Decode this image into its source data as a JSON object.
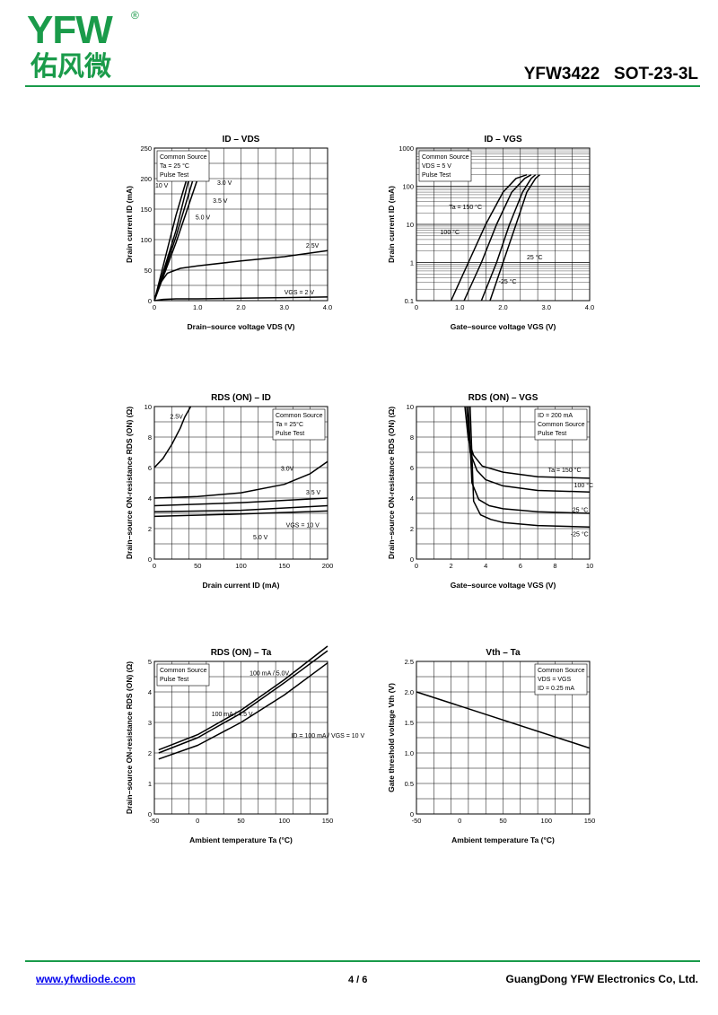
{
  "brand": {
    "logo_latin": "YFW",
    "logo_registered": "®",
    "logo_chinese": "佑风微",
    "green": "#1a9b4a",
    "orange": "#f39a1e"
  },
  "header": {
    "part": "YFW3422",
    "package": "SOT-23-3L"
  },
  "footer": {
    "url": "www.yfwdiode.com",
    "page": "4 / 6",
    "company": "GuangDong YFW Electronics Co, Ltd."
  },
  "chart_data": [
    {
      "type": "line",
      "title": "ID – VDS",
      "xlabel": "Drain–source voltage   VDS   (V)",
      "ylabel": "Drain current   ID   (mA)",
      "xlim": [
        0,
        4
      ],
      "ylim": [
        0,
        250
      ],
      "xticks": [
        "0",
        "1.0",
        "2.0",
        "3.0",
        "4.0"
      ],
      "yticks": [
        "0",
        "50",
        "100",
        "150",
        "200",
        "250"
      ],
      "grid": true,
      "log_y": false,
      "legend_box": {
        "position": "top-left",
        "lines": [
          "Common Source",
          "Ta = 25 °C",
          "Pulse Test"
        ]
      },
      "series": [
        {
          "name": "10 V",
          "x": [
            0,
            0.5,
            0.75
          ],
          "y": [
            0,
            140,
            200
          ]
        },
        {
          "name": "5.0 V",
          "x": [
            0,
            0.5,
            0.8
          ],
          "y": [
            0,
            115,
            200
          ]
        },
        {
          "name": "3.5 V",
          "x": [
            0,
            0.5,
            0.9
          ],
          "y": [
            0,
            105,
            200
          ]
        },
        {
          "name": "3.0 V",
          "x": [
            0,
            0.5,
            1.0
          ],
          "y": [
            0,
            95,
            200
          ]
        },
        {
          "name": "2.5V",
          "x": [
            0,
            0.1,
            0.3,
            0.6,
            1,
            2,
            3,
            4
          ],
          "y": [
            0,
            25,
            45,
            53,
            57,
            65,
            72,
            82
          ]
        },
        {
          "name": "VGS = 2 V",
          "x": [
            0,
            0.2,
            0.5,
            1,
            2,
            3,
            4
          ],
          "y": [
            0,
            2,
            3,
            3,
            4,
            5,
            6
          ]
        }
      ],
      "annotations": [
        {
          "text": "10 V",
          "x": 0.02,
          "y": 185
        },
        {
          "text": "3.0 V",
          "x": 1.45,
          "y": 190
        },
        {
          "text": "3.5 V",
          "x": 1.35,
          "y": 160
        },
        {
          "text": "5.0 V",
          "x": 0.95,
          "y": 133
        },
        {
          "text": "2.5V",
          "x": 3.5,
          "y": 87
        },
        {
          "text": "VGS = 2 V",
          "x": 3.0,
          "y": 10
        }
      ]
    },
    {
      "type": "line",
      "title": "ID – VGS",
      "xlabel": "Gate–source voltage   VGS   (V)",
      "ylabel": "Drain current   ID   (mA)",
      "xlim": [
        0,
        4
      ],
      "ylim": [
        0.1,
        1000
      ],
      "xticks": [
        "0",
        "1.0",
        "2.0",
        "3.0",
        "4.0"
      ],
      "yticks": [
        "0.1",
        "1",
        "10",
        "100",
        "1000"
      ],
      "grid": true,
      "log_y": true,
      "legend_box": {
        "position": "top-left",
        "lines": [
          "Common Source",
          "VDS = 5 V",
          "Pulse Test"
        ]
      },
      "series": [
        {
          "name": "Ta = 150 °C",
          "x": [
            0.8,
            1.2,
            1.6,
            2.0,
            2.3,
            2.55
          ],
          "y": [
            0.1,
            1,
            10,
            70,
            160,
            200
          ]
        },
        {
          "name": "100 °C",
          "x": [
            1.1,
            1.5,
            1.85,
            2.2,
            2.5,
            2.65
          ],
          "y": [
            0.1,
            1,
            10,
            70,
            160,
            200
          ]
        },
        {
          "name": "25 °C",
          "x": [
            1.5,
            1.85,
            2.15,
            2.45,
            2.65,
            2.75
          ],
          "y": [
            0.1,
            1,
            10,
            70,
            160,
            200
          ]
        },
        {
          "name": "-25 °C",
          "x": [
            1.7,
            2.0,
            2.3,
            2.55,
            2.75,
            2.85
          ],
          "y": [
            0.1,
            1,
            10,
            70,
            160,
            200
          ]
        }
      ],
      "annotations": [
        {
          "text": "Ta = 150 °C",
          "x": 0.75,
          "y": 25
        },
        {
          "text": "100 °C",
          "x": 0.55,
          "y": 5.5
        },
        {
          "text": "25 °C",
          "x": 2.55,
          "y": 1.2
        },
        {
          "text": "-25 °C",
          "x": 1.9,
          "y": 0.28
        }
      ]
    },
    {
      "type": "line",
      "title": "RDS (ON) – ID",
      "xlabel": "Drain current   ID   (mA)",
      "ylabel": "Drain–source ON-resistance   RDS (ON)   (Ω)",
      "xlim": [
        0,
        200
      ],
      "ylim": [
        0,
        10
      ],
      "xticks": [
        "0",
        "50",
        "100",
        "150",
        "200"
      ],
      "yticks": [
        "0",
        "2",
        "4",
        "6",
        "8",
        "10"
      ],
      "grid": true,
      "log_y": false,
      "legend_box": {
        "position": "top-right",
        "lines": [
          "Common Source",
          "Ta = 25°C",
          "Pulse Test"
        ]
      },
      "series": [
        {
          "name": "2.5V",
          "x": [
            0,
            10,
            20,
            30,
            35,
            42
          ],
          "y": [
            6,
            6.6,
            7.5,
            8.6,
            9.3,
            10
          ]
        },
        {
          "name": "3.0V",
          "x": [
            0,
            50,
            100,
            150,
            180,
            200
          ],
          "y": [
            4.0,
            4.1,
            4.35,
            4.9,
            5.6,
            6.4
          ]
        },
        {
          "name": "3.5 V",
          "x": [
            0,
            100,
            200
          ],
          "y": [
            3.5,
            3.7,
            4.0
          ]
        },
        {
          "name": "5.0 V",
          "x": [
            0,
            100,
            200
          ],
          "y": [
            3.1,
            3.2,
            3.5
          ]
        },
        {
          "name": "VGS = 10 V",
          "x": [
            0,
            100,
            200
          ],
          "y": [
            2.8,
            2.95,
            3.15
          ]
        }
      ],
      "annotations": [
        {
          "text": "2.5V",
          "x": 18,
          "y": 9.2
        },
        {
          "text": "3.0V",
          "x": 146,
          "y": 5.8
        },
        {
          "text": "3.5 V",
          "x": 175,
          "y": 4.25
        },
        {
          "text": "VGS = 10 V",
          "x": 152,
          "y": 2.1
        },
        {
          "text": "5.0 V",
          "x": 114,
          "y": 1.3
        }
      ]
    },
    {
      "type": "line",
      "title": "RDS (ON) – VGS",
      "xlabel": "Gate–source voltage   VGS   (V)",
      "ylabel": "Drain–source ON-resistance   RDS (ON)   (Ω)",
      "xlim": [
        0,
        10
      ],
      "ylim": [
        0,
        10
      ],
      "xticks": [
        "0",
        "2",
        "4",
        "6",
        "8",
        "10"
      ],
      "yticks": [
        "0",
        "2",
        "4",
        "6",
        "8",
        "10"
      ],
      "grid": true,
      "log_y": false,
      "legend_box": {
        "position": "top-right",
        "lines": [
          "ID = 200 mA",
          "Common Source",
          "Pulse Test"
        ]
      },
      "series": [
        {
          "name": "Ta = 150 °C",
          "x": [
            2.8,
            3.0,
            3.3,
            3.8,
            5,
            7,
            10
          ],
          "y": [
            10,
            7.8,
            6.8,
            6.1,
            5.7,
            5.4,
            5.3
          ]
        },
        {
          "name": "100 °C",
          "x": [
            2.9,
            3.1,
            3.5,
            4,
            5,
            7,
            10
          ],
          "y": [
            10,
            7,
            5.8,
            5.2,
            4.8,
            4.5,
            4.4
          ]
        },
        {
          "name": "25 °C",
          "x": [
            3.0,
            3.2,
            3.6,
            4.2,
            5,
            7,
            10
          ],
          "y": [
            10,
            5,
            3.9,
            3.5,
            3.3,
            3.1,
            3.0
          ]
        },
        {
          "name": "-25 °C",
          "x": [
            3.1,
            3.3,
            3.7,
            4.3,
            5,
            7,
            10
          ],
          "y": [
            10,
            3.8,
            2.9,
            2.6,
            2.4,
            2.2,
            2.1
          ]
        }
      ],
      "annotations": [
        {
          "text": "Ta = 150 °C",
          "x": 7.6,
          "y": 5.7
        },
        {
          "text": "100 °C",
          "x": 9.1,
          "y": 4.7
        },
        {
          "text": "25 °C",
          "x": 9.0,
          "y": 3.1
        },
        {
          "text": "-25 °C",
          "x": 8.9,
          "y": 1.5
        }
      ]
    },
    {
      "type": "line",
      "title": "RDS (ON) – Ta",
      "xlabel": "Ambient temperature   Ta   (°C)",
      "ylabel": "Drain–source ON-resistance   RDS (ON)   (Ω)",
      "xlim": [
        -50,
        150
      ],
      "ylim": [
        0,
        5
      ],
      "xticks": [
        "-50",
        "0",
        "50",
        "100",
        "150"
      ],
      "yticks": [
        "0",
        "1",
        "2",
        "3",
        "4",
        "5"
      ],
      "grid": true,
      "log_y": false,
      "legend_box": {
        "position": "top-left",
        "lines": [
          "Common Source",
          "Pulse Test"
        ]
      },
      "series": [
        {
          "name": "100 mA / 5.0V",
          "x": [
            -45,
            0,
            50,
            100,
            150
          ],
          "y": [
            2.1,
            2.6,
            3.4,
            4.4,
            5.5
          ]
        },
        {
          "name": "100 mA / 4.5 V",
          "x": [
            -45,
            0,
            50,
            100,
            150
          ],
          "y": [
            2.0,
            2.5,
            3.3,
            4.3,
            5.35
          ]
        },
        {
          "name": "ID = 100 mA / VGS = 10 V",
          "x": [
            -45,
            0,
            50,
            100,
            150
          ],
          "y": [
            1.8,
            2.25,
            3.0,
            3.9,
            4.95
          ]
        }
      ],
      "annotations": [
        {
          "text": "100 mA / 5.0V",
          "x": 60,
          "y": 4.55
        },
        {
          "text": "100 mA / 4.5 V",
          "x": 16,
          "y": 3.2
        },
        {
          "text": "ID = 100 mA / VGS = 10 V",
          "x": 108,
          "y": 2.5
        }
      ]
    },
    {
      "type": "line",
      "title": "Vth – Ta",
      "xlabel": "Ambient temperature   Ta   (°C)",
      "ylabel": "Gate threshold voltage   Vth   (V)",
      "xlim": [
        -50,
        150
      ],
      "ylim": [
        0,
        2.5
      ],
      "xticks": [
        "-50",
        "0",
        "50",
        "100",
        "150"
      ],
      "yticks": [
        "0",
        "0.5",
        "1.0",
        "1.5",
        "2.0",
        "2.5"
      ],
      "grid": true,
      "log_y": false,
      "legend_box": {
        "position": "top-right",
        "lines": [
          "Common Source",
          "VDS = VGS",
          "ID = 0.25 mA"
        ]
      },
      "series": [
        {
          "name": "Vth",
          "x": [
            -50,
            150
          ],
          "y": [
            2.0,
            1.08
          ]
        }
      ],
      "annotations": []
    }
  ]
}
